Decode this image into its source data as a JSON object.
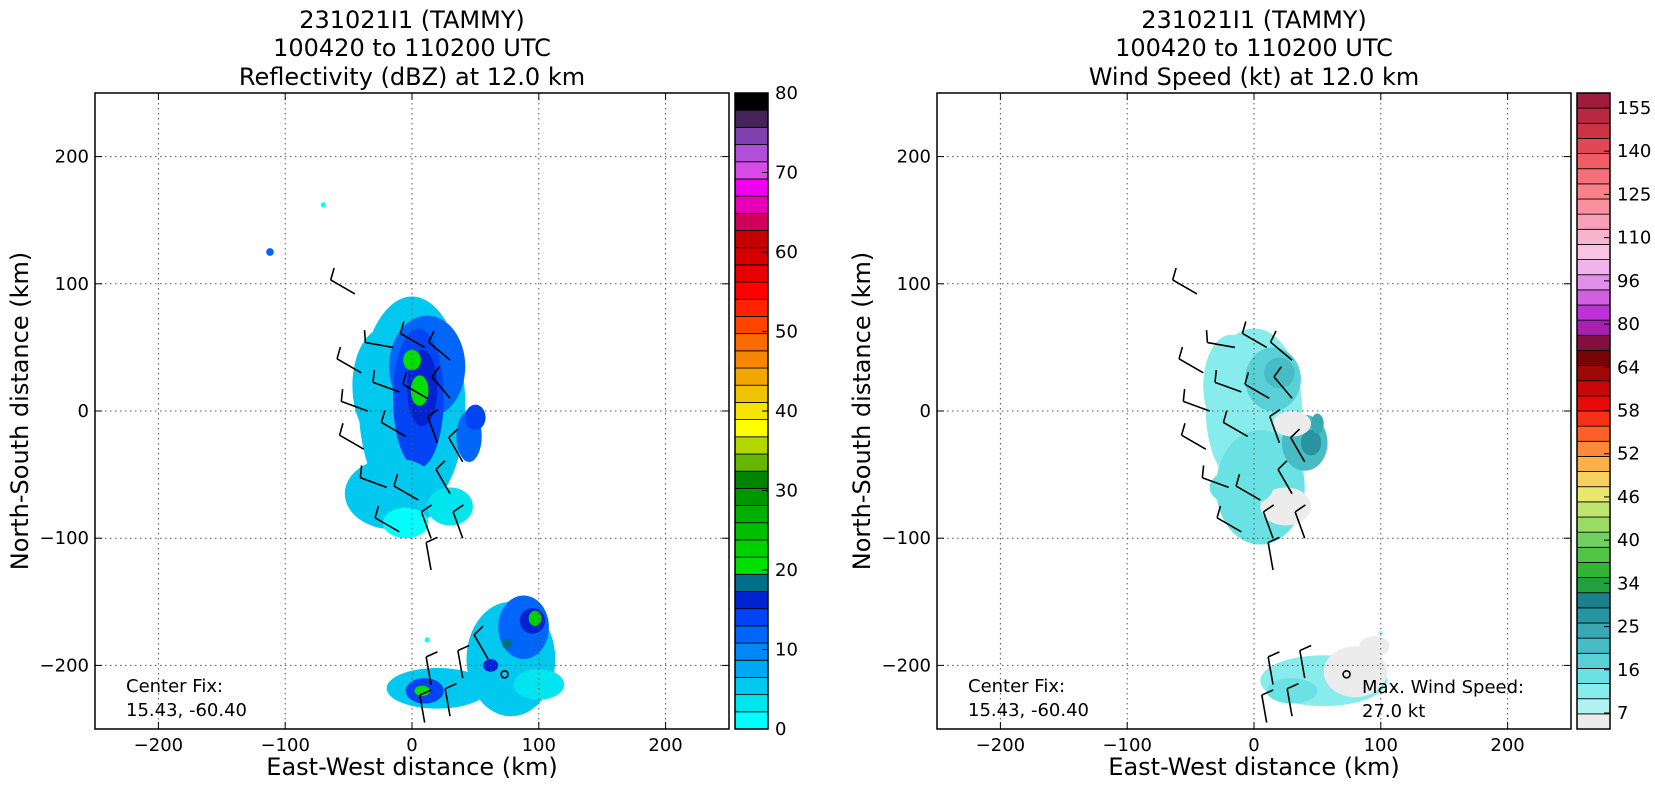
{
  "figure": {
    "panels": [
      {
        "title_lines": [
          "231021I1 (TAMMY)",
          "100420 to 110200 UTC",
          "Reflectivity (dBZ) at 12.0 km"
        ],
        "xlabel": "East-West distance (km)",
        "ylabel": "North-South distance (km)",
        "annotation_lines": [
          "Center Fix:",
          "15.43, -60.40"
        ]
      },
      {
        "title_lines": [
          "231021I1 (TAMMY)",
          "100420 to 110200 UTC",
          "Wind Speed (kt) at 12.0 km"
        ],
        "xlabel": "East-West distance (km)",
        "ylabel": "North-South distance (km)",
        "annotation_lines": [
          "Center Fix:",
          "15.43, -60.40"
        ],
        "annotation2_lines": [
          "Max. Wind Speed:",
          "27.0 kt"
        ]
      }
    ]
  },
  "chart_data": [
    {
      "type": "heatmap",
      "field": "reflectivity",
      "title": "231021I1 (TAMMY) 100420 to 110200 UTC Reflectivity (dBZ) at 12.0 km",
      "xlabel": "East-West distance (km)",
      "ylabel": "North-South distance (km)",
      "xlim": [
        -250,
        250
      ],
      "ylim": [
        -250,
        250
      ],
      "xticks": [
        -200,
        -100,
        0,
        100,
        200
      ],
      "yticks": [
        -200,
        -100,
        0,
        100,
        200
      ],
      "grid": true,
      "center_fix": {
        "label": "Center Fix:",
        "value": "15.43, -60.40",
        "x_km": 73,
        "y_km": -207
      },
      "colorbar": {
        "min": 0,
        "max": 80,
        "step": 2.5,
        "tick_labels": [
          "0",
          "10",
          "20",
          "30",
          "40",
          "50",
          "60",
          "70",
          "80"
        ],
        "colors": [
          "#00ffff",
          "#00e5ee",
          "#00c8ef",
          "#00a8f4",
          "#0088f7",
          "#0066f9",
          "#0044f5",
          "#0022d0",
          "#00708a",
          "#00e000",
          "#00d000",
          "#00bf00",
          "#00b000",
          "#009600",
          "#008300",
          "#66b500",
          "#b2d800",
          "#ffff00",
          "#f7e300",
          "#eec400",
          "#f2a600",
          "#f58800",
          "#fa6a00",
          "#ff4400",
          "#ff2200",
          "#ff0000",
          "#e80000",
          "#d40000",
          "#c40000",
          "#d0005a",
          "#e800b8",
          "#f000f0",
          "#d84ae8",
          "#b050d8",
          "#8040b0",
          "#442458",
          "#000000"
        ]
      },
      "blobs": [
        {
          "cx": 0,
          "cy": 5,
          "rx": 42,
          "ry": 85,
          "level": 2
        },
        {
          "cx": -22,
          "cy": 20,
          "rx": 25,
          "ry": 45,
          "level": 2
        },
        {
          "cx": 12,
          "cy": 35,
          "rx": 30,
          "ry": 40,
          "level": 5
        },
        {
          "cx": 5,
          "cy": 10,
          "rx": 20,
          "ry": 55,
          "level": 6
        },
        {
          "cx": 8,
          "cy": 18,
          "rx": 12,
          "ry": 30,
          "level": 7
        },
        {
          "cx": 6,
          "cy": 16,
          "rx": 7,
          "ry": 12,
          "level": 9
        },
        {
          "cx": 0,
          "cy": 40,
          "rx": 7,
          "ry": 8,
          "level": 9
        },
        {
          "cx": 45,
          "cy": -20,
          "rx": 10,
          "ry": 20,
          "level": 5
        },
        {
          "cx": 50,
          "cy": -5,
          "rx": 8,
          "ry": 10,
          "level": 6
        },
        {
          "cx": -15,
          "cy": -65,
          "rx": 38,
          "ry": 28,
          "level": 2
        },
        {
          "cx": -5,
          "cy": -88,
          "rx": 18,
          "ry": 12,
          "level": 0
        },
        {
          "cx": 30,
          "cy": -75,
          "rx": 18,
          "ry": 15,
          "level": 1
        },
        {
          "cx": 78,
          "cy": -195,
          "rx": 35,
          "ry": 45,
          "level": 2
        },
        {
          "cx": 88,
          "cy": -170,
          "rx": 20,
          "ry": 25,
          "level": 5
        },
        {
          "cx": 95,
          "cy": -165,
          "rx": 10,
          "ry": 10,
          "level": 7
        },
        {
          "cx": 97,
          "cy": -163,
          "rx": 5,
          "ry": 6,
          "level": 10
        },
        {
          "cx": 75,
          "cy": -183,
          "rx": 4,
          "ry": 4,
          "level": 8
        },
        {
          "cx": 20,
          "cy": -218,
          "rx": 40,
          "ry": 16,
          "level": 2
        },
        {
          "cx": 10,
          "cy": -220,
          "rx": 15,
          "ry": 10,
          "level": 6
        },
        {
          "cx": 8,
          "cy": -220,
          "rx": 6,
          "ry": 4,
          "level": 9
        },
        {
          "cx": 62,
          "cy": -200,
          "rx": 6,
          "ry": 5,
          "level": 7
        },
        {
          "cx": 100,
          "cy": -215,
          "rx": 20,
          "ry": 12,
          "level": 1
        },
        {
          "cx": -112,
          "cy": 125,
          "rx": 3,
          "ry": 3,
          "level": 5
        },
        {
          "cx": -70,
          "cy": 162,
          "rx": 2,
          "ry": 2,
          "level": 0
        },
        {
          "cx": 12,
          "cy": -180,
          "rx": 2,
          "ry": 2,
          "level": 0
        }
      ],
      "barbs": [
        {
          "x": -45,
          "y": 92,
          "dir": 300,
          "kt": 10
        },
        {
          "x": -40,
          "y": 30,
          "dir": 300,
          "kt": 10
        },
        {
          "x": -35,
          "y": 0,
          "dir": 290,
          "kt": 10
        },
        {
          "x": -38,
          "y": -30,
          "dir": 300,
          "kt": 10
        },
        {
          "x": -15,
          "y": 50,
          "dir": 280,
          "kt": 10
        },
        {
          "x": 10,
          "y": 50,
          "dir": 300,
          "kt": 10
        },
        {
          "x": 30,
          "y": 40,
          "dir": 310,
          "kt": 10
        },
        {
          "x": -10,
          "y": 15,
          "dir": 290,
          "kt": 10
        },
        {
          "x": 12,
          "y": 10,
          "dir": 300,
          "kt": 10
        },
        {
          "x": 30,
          "y": 10,
          "dir": 320,
          "kt": 10
        },
        {
          "x": -5,
          "y": -20,
          "dir": 300,
          "kt": 10
        },
        {
          "x": 20,
          "y": -25,
          "dir": 340,
          "kt": 10
        },
        {
          "x": 40,
          "y": -40,
          "dir": 330,
          "kt": 10
        },
        {
          "x": -20,
          "y": -60,
          "dir": 290,
          "kt": 10
        },
        {
          "x": 5,
          "y": -70,
          "dir": 300,
          "kt": 10
        },
        {
          "x": 30,
          "y": -65,
          "dir": 330,
          "kt": 10
        },
        {
          "x": -10,
          "y": -95,
          "dir": 300,
          "kt": 10
        },
        {
          "x": 15,
          "y": -100,
          "dir": 340,
          "kt": 10
        },
        {
          "x": 40,
          "y": -100,
          "dir": 340,
          "kt": 10
        },
        {
          "x": 15,
          "y": -125,
          "dir": 350,
          "kt": 10
        },
        {
          "x": 15,
          "y": -215,
          "dir": 350,
          "kt": 10
        },
        {
          "x": 40,
          "y": -210,
          "dir": 350,
          "kt": 10
        },
        {
          "x": 60,
          "y": -195,
          "dir": 330,
          "kt": 10
        },
        {
          "x": 30,
          "y": -240,
          "dir": 350,
          "kt": 10
        },
        {
          "x": 10,
          "y": -245,
          "dir": 350,
          "kt": 10
        }
      ]
    },
    {
      "type": "heatmap",
      "field": "wind_speed",
      "title": "231021I1 (TAMMY) 100420 to 110200 UTC Wind Speed (kt) at 12.0 km",
      "xlabel": "East-West distance (km)",
      "ylabel": "North-South distance (km)",
      "xlim": [
        -250,
        250
      ],
      "ylim": [
        -250,
        250
      ],
      "xticks": [
        -200,
        -100,
        0,
        100,
        200
      ],
      "yticks": [
        -200,
        -100,
        0,
        100,
        200
      ],
      "grid": true,
      "center_fix": {
        "label": "Center Fix:",
        "value": "15.43, -60.40",
        "x_km": 73,
        "y_km": -207
      },
      "max_wind_speed": {
        "label": "Max. Wind Speed:",
        "value": "27.0 kt"
      },
      "colorbar": {
        "min": 4,
        "max": 160,
        "tick_labels": [
          "7",
          "16",
          "25",
          "34",
          "40",
          "46",
          "52",
          "58",
          "64",
          "80",
          "96",
          "110",
          "125",
          "140",
          "155"
        ],
        "colors": [
          "#ececec",
          "#b0f2f0",
          "#88ecec",
          "#6ae2e4",
          "#58d0d6",
          "#48bcc4",
          "#38a8b2",
          "#2894a0",
          "#19808c",
          "#22a040",
          "#32b434",
          "#50c444",
          "#72d060",
          "#98dc64",
          "#c0e470",
          "#e8e870",
          "#f8d060",
          "#fbb048",
          "#fc8a38",
          "#fc6028",
          "#f83018",
          "#e80a0a",
          "#c80808",
          "#a00808",
          "#780404",
          "#80103c",
          "#a820b0",
          "#c030d8",
          "#d060e0",
          "#e090e8",
          "#f0b4ec",
          "#f8c4e4",
          "#f8b4cc",
          "#f8a0b8",
          "#f890a0",
          "#f88088",
          "#f47078",
          "#ee5c64",
          "#e04854",
          "#cc3444",
          "#b82840",
          "#a01c3c"
        ]
      },
      "blobs": [
        {
          "cx": 0,
          "cy": 0,
          "rx": 38,
          "ry": 65,
          "level": 2
        },
        {
          "cx": -18,
          "cy": 20,
          "rx": 22,
          "ry": 40,
          "level": 2
        },
        {
          "cx": 5,
          "cy": -60,
          "rx": 35,
          "ry": 45,
          "level": 3
        },
        {
          "cx": 15,
          "cy": 25,
          "rx": 22,
          "ry": 25,
          "level": 4
        },
        {
          "cx": 20,
          "cy": 30,
          "rx": 12,
          "ry": 12,
          "level": 5
        },
        {
          "cx": 40,
          "cy": -25,
          "rx": 18,
          "ry": 22,
          "level": 5
        },
        {
          "cx": 45,
          "cy": -25,
          "rx": 8,
          "ry": 10,
          "level": 7
        },
        {
          "cx": 50,
          "cy": -10,
          "rx": 5,
          "ry": 8,
          "level": 6
        },
        {
          "cx": 30,
          "cy": -10,
          "rx": 15,
          "ry": 10,
          "level": 0
        },
        {
          "cx": 25,
          "cy": -75,
          "rx": 20,
          "ry": 15,
          "level": 0
        },
        {
          "cx": -10,
          "cy": -60,
          "rx": 25,
          "ry": 15,
          "level": 3
        },
        {
          "cx": 55,
          "cy": -212,
          "rx": 50,
          "ry": 20,
          "level": 2
        },
        {
          "cx": 80,
          "cy": -205,
          "rx": 25,
          "ry": 20,
          "level": 0
        },
        {
          "cx": 30,
          "cy": -220,
          "rx": 20,
          "ry": 10,
          "level": 3
        },
        {
          "cx": 95,
          "cy": -185,
          "rx": 12,
          "ry": 8,
          "level": 0
        },
        {
          "cx": 100,
          "cy": -175,
          "rx": 2,
          "ry": 2,
          "level": 1
        }
      ],
      "barbs": [
        {
          "x": -45,
          "y": 92,
          "dir": 300,
          "kt": 10
        },
        {
          "x": -40,
          "y": 30,
          "dir": 300,
          "kt": 10
        },
        {
          "x": -35,
          "y": 0,
          "dir": 290,
          "kt": 10
        },
        {
          "x": -38,
          "y": -30,
          "dir": 300,
          "kt": 10
        },
        {
          "x": -15,
          "y": 50,
          "dir": 280,
          "kt": 10
        },
        {
          "x": 10,
          "y": 50,
          "dir": 300,
          "kt": 10
        },
        {
          "x": 30,
          "y": 40,
          "dir": 310,
          "kt": 10
        },
        {
          "x": -10,
          "y": 15,
          "dir": 290,
          "kt": 10
        },
        {
          "x": 12,
          "y": 10,
          "dir": 300,
          "kt": 10
        },
        {
          "x": 30,
          "y": 10,
          "dir": 320,
          "kt": 10
        },
        {
          "x": -5,
          "y": -20,
          "dir": 300,
          "kt": 10
        },
        {
          "x": 20,
          "y": -25,
          "dir": 340,
          "kt": 10
        },
        {
          "x": 40,
          "y": -40,
          "dir": 330,
          "kt": 10
        },
        {
          "x": -20,
          "y": -60,
          "dir": 290,
          "kt": 10
        },
        {
          "x": 5,
          "y": -70,
          "dir": 300,
          "kt": 10
        },
        {
          "x": 30,
          "y": -65,
          "dir": 330,
          "kt": 10
        },
        {
          "x": -10,
          "y": -95,
          "dir": 300,
          "kt": 10
        },
        {
          "x": 15,
          "y": -100,
          "dir": 340,
          "kt": 10
        },
        {
          "x": 40,
          "y": -100,
          "dir": 340,
          "kt": 10
        },
        {
          "x": 15,
          "y": -125,
          "dir": 350,
          "kt": 10
        },
        {
          "x": 15,
          "y": -215,
          "dir": 350,
          "kt": 10
        },
        {
          "x": 40,
          "y": -210,
          "dir": 350,
          "kt": 10
        },
        {
          "x": 30,
          "y": -240,
          "dir": 350,
          "kt": 10
        },
        {
          "x": 10,
          "y": -245,
          "dir": 350,
          "kt": 10
        }
      ]
    }
  ]
}
